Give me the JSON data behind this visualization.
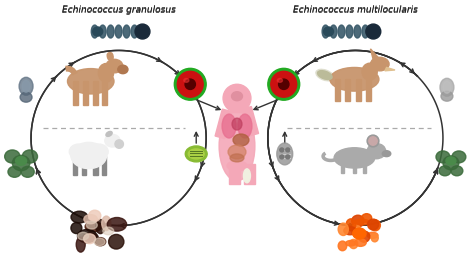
{
  "title_left": "Echinococcus granulosus",
  "title_right": "Echinococcus multilocularis",
  "bg_color": "#ffffff",
  "title_fontsize": 6.5,
  "title_style": "italic",
  "title_color": "#222222",
  "fig_width": 4.74,
  "fig_height": 2.76,
  "dpi": 100,
  "arrow_color": "#333333",
  "dashed_color": "#aaaaaa"
}
